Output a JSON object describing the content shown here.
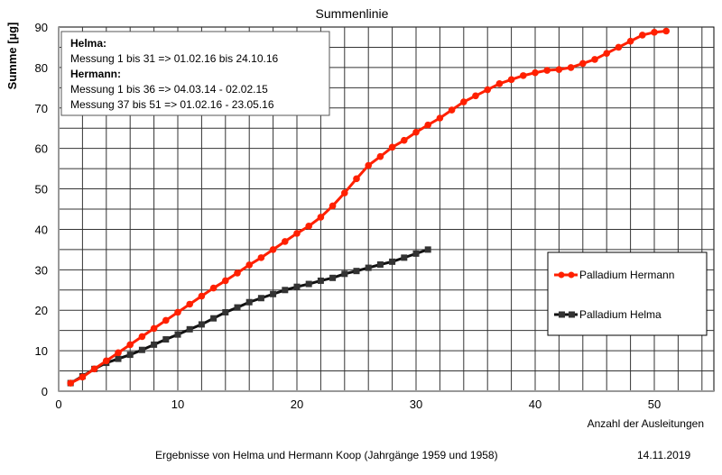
{
  "chart_data": {
    "type": "line",
    "title": "Summenlinie",
    "xlabel": "Anzahl der Ausleitungen",
    "ylabel": "Summe [µg]",
    "xlim": [
      0,
      55
    ],
    "ylim": [
      0,
      90
    ],
    "xticks": [
      0,
      10,
      20,
      30,
      40,
      50
    ],
    "yticks": [
      0,
      10,
      20,
      30,
      40,
      50,
      60,
      70,
      80,
      90
    ],
    "grid": true,
    "legend_position": "right",
    "series": [
      {
        "name": "Palladium Hermann",
        "color": "#ff2000",
        "marker": "circle",
        "x": [
          1,
          2,
          3,
          4,
          5,
          6,
          7,
          8,
          9,
          10,
          11,
          12,
          13,
          14,
          15,
          16,
          17,
          18,
          19,
          20,
          21,
          22,
          23,
          24,
          25,
          26,
          27,
          28,
          29,
          30,
          31,
          32,
          33,
          34,
          35,
          36,
          37,
          38,
          39,
          40,
          41,
          42,
          43,
          44,
          45,
          46,
          47,
          48,
          49,
          50,
          51
        ],
        "y": [
          2,
          3.5,
          5.5,
          7.5,
          9.5,
          11.5,
          13.5,
          15.5,
          17.5,
          19.5,
          21.5,
          23.5,
          25.5,
          27.3,
          29.2,
          31.2,
          33,
          35,
          37,
          39,
          40.8,
          43,
          45.8,
          49,
          52.5,
          55.8,
          58,
          60.3,
          62,
          64,
          65.8,
          67.5,
          69.5,
          71.5,
          73,
          74.5,
          76,
          77,
          78,
          78.7,
          79.3,
          79.5,
          80,
          81,
          82,
          83.5,
          85,
          86.5,
          88,
          88.7,
          89
        ]
      },
      {
        "name": "Palladium Helma",
        "color": "#111111",
        "marker": "square-x",
        "x": [
          1,
          2,
          3,
          4,
          5,
          6,
          7,
          8,
          9,
          10,
          11,
          12,
          13,
          14,
          15,
          16,
          17,
          18,
          19,
          20,
          21,
          22,
          23,
          24,
          25,
          26,
          27,
          28,
          29,
          30,
          31
        ],
        "y": [
          2,
          3.7,
          5.5,
          7,
          8,
          9,
          10.2,
          11.5,
          12.8,
          14,
          15.3,
          16.5,
          18,
          19.5,
          20.7,
          22,
          23,
          24,
          25,
          25.8,
          26.5,
          27.3,
          28,
          29,
          29.7,
          30.5,
          31.3,
          32,
          33,
          34,
          35
        ]
      }
    ],
    "annotations": [
      {
        "text": "Helma:",
        "bold": true
      },
      {
        "text": "Messung 1 bis 31 => 01.02.16 bis 24.10.16",
        "bold": false
      },
      {
        "text": "Hermann:",
        "bold": true
      },
      {
        "text": "Messung 1 bis 36 => 04.03.14 - 02.02.15",
        "bold": false
      },
      {
        "text": "Messung 37 bis 51 => 01.02.16 - 23.05.16",
        "bold": false
      }
    ],
    "footer": "Ergebnisse von Helma und Hermann Koop (Jahrgänge 1959 und 1958)",
    "date": "14.11.2019"
  }
}
